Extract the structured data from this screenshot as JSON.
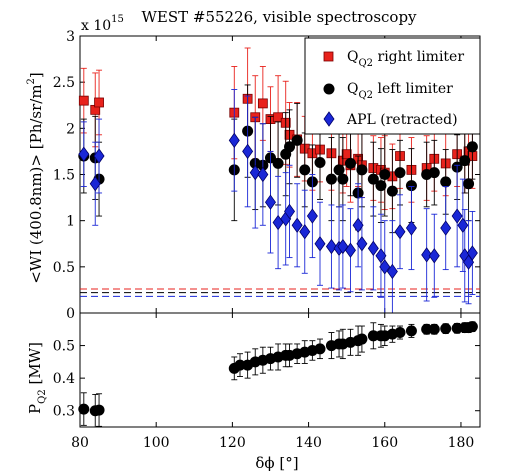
{
  "figure": {
    "title": "WEST #55226, visible spectroscopy"
  },
  "chart_data": [
    {
      "type": "scatter",
      "panel": "top",
      "multiplier_label": "x 10",
      "multiplier_exp": "15",
      "ylabel_main": "<WI (400.8nm)> [Ph/sr/m",
      "ylabel_sup": "2",
      "ylabel_end": "]",
      "xlim": [
        80,
        185
      ],
      "ylim": [
        0,
        3
      ],
      "xticks": [
        80,
        100,
        120,
        140,
        160,
        180
      ],
      "yticks": [
        "0",
        "0.5",
        "1",
        "1.5",
        "2",
        "2.5",
        "3"
      ],
      "legend": {
        "position": "top-right",
        "entries": [
          {
            "name_main": "Q",
            "name_sub": "Q2",
            "name_rest": " right limiter",
            "color": "#e8221c",
            "marker": "square"
          },
          {
            "name_main": "Q",
            "name_sub": "Q2",
            "name_rest": " left limiter",
            "color": "#000000",
            "marker": "circle"
          },
          {
            "name_main": "",
            "name_sub": "",
            "name_rest": "APL (retracted)",
            "color": "#1a27d6",
            "marker": "diamond"
          }
        ]
      },
      "series": [
        {
          "key": "right",
          "color": "#e8221c",
          "marker": "square",
          "points": [
            [
              81,
              2.3,
              0.35
            ],
            [
              84,
              2.2,
              0.4
            ],
            [
              85,
              2.28,
              0.35
            ],
            [
              120.5,
              2.17,
              0.5
            ],
            [
              124,
              2.32,
              0.55
            ],
            [
              126,
              2.12,
              0.45
            ],
            [
              128,
              2.27,
              0.4
            ],
            [
              130,
              2.1,
              0.35
            ],
            [
              132,
              2.12,
              0.45
            ],
            [
              134,
              2.06,
              0.45
            ],
            [
              135,
              1.93,
              0.35
            ],
            [
              137,
              1.88,
              0.4
            ],
            [
              139,
              1.78,
              0.35
            ],
            [
              141,
              1.73,
              0.4
            ],
            [
              143,
              1.77,
              0.35
            ],
            [
              146,
              1.73,
              0.4
            ],
            [
              149,
              1.65,
              0.35
            ],
            [
              150,
              1.72,
              0.35
            ],
            [
              151,
              1.6,
              0.4
            ],
            [
              153,
              1.67,
              0.3
            ],
            [
              154,
              1.6,
              0.35
            ],
            [
              157,
              1.57,
              0.35
            ],
            [
              159,
              1.55,
              0.35
            ],
            [
              160,
              1.52,
              0.4
            ],
            [
              162,
              1.48,
              0.35
            ],
            [
              164,
              1.7,
              0.35
            ],
            [
              167,
              1.55,
              0.35
            ],
            [
              171,
              1.57,
              0.35
            ],
            [
              173,
              1.67,
              0.35
            ],
            [
              176,
              1.62,
              0.35
            ],
            [
              179,
              1.72,
              0.35
            ],
            [
              181,
              1.65,
              0.35
            ],
            [
              182,
              1.75,
              0.4
            ],
            [
              183,
              1.7,
              0.35
            ]
          ]
        },
        {
          "key": "left",
          "color": "#000000",
          "marker": "circle",
          "points": [
            [
              81,
              1.7,
              0.4
            ],
            [
              84,
              1.68,
              0.45
            ],
            [
              85,
              1.45,
              0.4
            ],
            [
              120.5,
              1.55,
              0.55
            ],
            [
              124,
              1.97,
              0.5
            ],
            [
              126,
              1.62,
              0.5
            ],
            [
              128,
              1.6,
              0.45
            ],
            [
              130,
              1.68,
              0.45
            ],
            [
              132,
              1.62,
              0.45
            ],
            [
              134,
              1.72,
              0.45
            ],
            [
              135,
              1.8,
              0.4
            ],
            [
              137,
              1.87,
              0.4
            ],
            [
              139,
              1.55,
              0.4
            ],
            [
              141,
              1.42,
              0.4
            ],
            [
              143,
              1.63,
              0.4
            ],
            [
              146,
              1.45,
              0.45
            ],
            [
              148,
              1.55,
              0.4
            ],
            [
              149,
              1.45,
              0.45
            ],
            [
              151,
              1.62,
              0.35
            ],
            [
              153,
              1.3,
              0.4
            ],
            [
              154,
              1.55,
              0.4
            ],
            [
              157,
              1.45,
              0.4
            ],
            [
              159,
              1.38,
              0.4
            ],
            [
              160,
              1.5,
              0.45
            ],
            [
              162,
              1.32,
              0.45
            ],
            [
              164,
              1.52,
              0.35
            ],
            [
              167,
              1.38,
              0.4
            ],
            [
              171,
              1.5,
              0.35
            ],
            [
              173,
              1.52,
              0.35
            ],
            [
              176,
              1.42,
              0.35
            ],
            [
              179,
              1.58,
              0.35
            ],
            [
              181,
              1.65,
              0.35
            ],
            [
              182,
              1.4,
              0.4
            ],
            [
              183,
              1.8,
              0.35
            ]
          ]
        },
        {
          "key": "apl",
          "color": "#1a27d6",
          "marker": "diamond",
          "points": [
            [
              81,
              1.72,
              0.35
            ],
            [
              84,
              1.4,
              0.45
            ],
            [
              85,
              1.7,
              0.4
            ],
            [
              120.5,
              1.87,
              0.55
            ],
            [
              124,
              1.75,
              0.6
            ],
            [
              126,
              1.52,
              0.6
            ],
            [
              128,
              1.5,
              0.55
            ],
            [
              130,
              1.2,
              0.55
            ],
            [
              132,
              0.98,
              0.5
            ],
            [
              134,
              1.02,
              0.5
            ],
            [
              135,
              1.1,
              0.5
            ],
            [
              137,
              0.95,
              0.45
            ],
            [
              139,
              0.88,
              0.45
            ],
            [
              141,
              1.05,
              0.45
            ],
            [
              143,
              0.75,
              0.45
            ],
            [
              146,
              0.72,
              0.45
            ],
            [
              148,
              0.7,
              0.45
            ],
            [
              149,
              0.72,
              0.45
            ],
            [
              151,
              0.68,
              0.45
            ],
            [
              153,
              0.95,
              0.45
            ],
            [
              154,
              0.75,
              0.5
            ],
            [
              157,
              0.7,
              0.45
            ],
            [
              159,
              0.62,
              0.45
            ],
            [
              160,
              0.5,
              0.5
            ],
            [
              162,
              0.45,
              0.55
            ],
            [
              164,
              0.88,
              0.4
            ],
            [
              167,
              0.92,
              0.45
            ],
            [
              171,
              0.63,
              0.5
            ],
            [
              173,
              0.62,
              0.45
            ],
            [
              176,
              0.92,
              0.45
            ],
            [
              179,
              1.05,
              0.55
            ],
            [
              180.5,
              0.95,
              0.5
            ],
            [
              181,
              0.62,
              0.5
            ],
            [
              182,
              0.55,
              0.45
            ],
            [
              183,
              0.65,
              0.45
            ]
          ]
        }
      ],
      "baselines": [
        {
          "y": 0.26,
          "color": "#e8221c"
        },
        {
          "y": 0.22,
          "color": "#000000"
        },
        {
          "y": 0.18,
          "color": "#1a27d6"
        }
      ]
    },
    {
      "type": "scatter",
      "panel": "bottom",
      "ylabel_main": "P",
      "ylabel_sub": "Q2",
      "ylabel_end": " [MW]",
      "xlabel": "δϕ [°]",
      "xlim": [
        80,
        185
      ],
      "ylim": [
        0.25,
        0.6
      ],
      "xticks": [
        80,
        100,
        120,
        140,
        160,
        180
      ],
      "yticks": [
        "0.3",
        "0.4",
        "0.5"
      ],
      "series": [
        {
          "key": "power",
          "color": "#000000",
          "marker": "circle",
          "points": [
            [
              81,
              0.305,
              0.05
            ],
            [
              84,
              0.3,
              0.05
            ],
            [
              85,
              0.302,
              0.05
            ],
            [
              120.5,
              0.43,
              0.035
            ],
            [
              122,
              0.44,
              0.035
            ],
            [
              124,
              0.44,
              0.04
            ],
            [
              126,
              0.45,
              0.04
            ],
            [
              128,
              0.455,
              0.04
            ],
            [
              130,
              0.46,
              0.035
            ],
            [
              132,
              0.465,
              0.04
            ],
            [
              134,
              0.47,
              0.035
            ],
            [
              135,
              0.47,
              0.035
            ],
            [
              137,
              0.475,
              0.03
            ],
            [
              139,
              0.48,
              0.035
            ],
            [
              141,
              0.485,
              0.03
            ],
            [
              143,
              0.49,
              0.03
            ],
            [
              146,
              0.5,
              0.04
            ],
            [
              148,
              0.505,
              0.04
            ],
            [
              149,
              0.505,
              0.045
            ],
            [
              151,
              0.51,
              0.04
            ],
            [
              153,
              0.515,
              0.045
            ],
            [
              154,
              0.52,
              0.04
            ],
            [
              157,
              0.53,
              0.04
            ],
            [
              159,
              0.53,
              0.035
            ],
            [
              160,
              0.53,
              0.03
            ],
            [
              162,
              0.535,
              0.025
            ],
            [
              164,
              0.54,
              0.02
            ],
            [
              167,
              0.545,
              0.02
            ],
            [
              171,
              0.55,
              0.015
            ],
            [
              173,
              0.55,
              0.015
            ],
            [
              176,
              0.552,
              0.015
            ],
            [
              179,
              0.553,
              0.015
            ],
            [
              181,
              0.555,
              0.015
            ],
            [
              182,
              0.555,
              0.015
            ],
            [
              183,
              0.558,
              0.015
            ]
          ]
        }
      ]
    }
  ]
}
